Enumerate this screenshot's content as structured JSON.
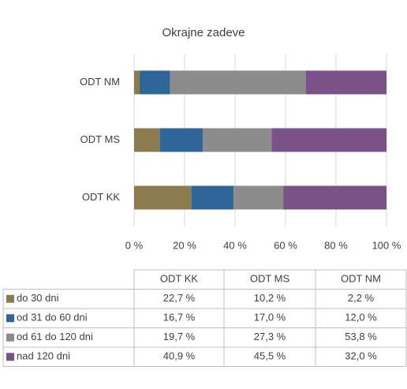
{
  "chart_data": {
    "type": "stacked_bar_horizontal",
    "title": "Okrajne zadeve",
    "categories": [
      "ODT KK",
      "ODT MS",
      "ODT NM"
    ],
    "series": [
      {
        "name": "do 30 dni",
        "color": "#8b7b4e",
        "values": [
          22.7,
          10.2,
          2.2
        ],
        "value_labels": [
          "22,7 %",
          "10,2 %",
          "2,2 %"
        ]
      },
      {
        "name": "od 31 do 60 dni",
        "color": "#2e6699",
        "values": [
          16.7,
          17.0,
          12.0
        ],
        "value_labels": [
          "16,7 %",
          "17,0 %",
          "12,0 %"
        ]
      },
      {
        "name": "od 61 do 120 dni",
        "color": "#8c8c8c",
        "values": [
          19.7,
          27.3,
          53.8
        ],
        "value_labels": [
          "19,7 %",
          "27,3 %",
          "53,8 %"
        ]
      },
      {
        "name": "nad 120 dni",
        "color": "#7b5287",
        "values": [
          40.9,
          45.5,
          32.0
        ],
        "value_labels": [
          "40,9 %",
          "45,5 %",
          "32,0 %"
        ]
      }
    ],
    "xlim": [
      0,
      100
    ],
    "xticks": [
      {
        "value": 0,
        "label": "0 %"
      },
      {
        "value": 20,
        "label": "20 %"
      },
      {
        "value": 40,
        "label": "40 %"
      },
      {
        "value": 60,
        "label": "60 %"
      },
      {
        "value": 80,
        "label": "80 %"
      },
      {
        "value": 100,
        "label": "100 %"
      }
    ],
    "grid": true
  }
}
